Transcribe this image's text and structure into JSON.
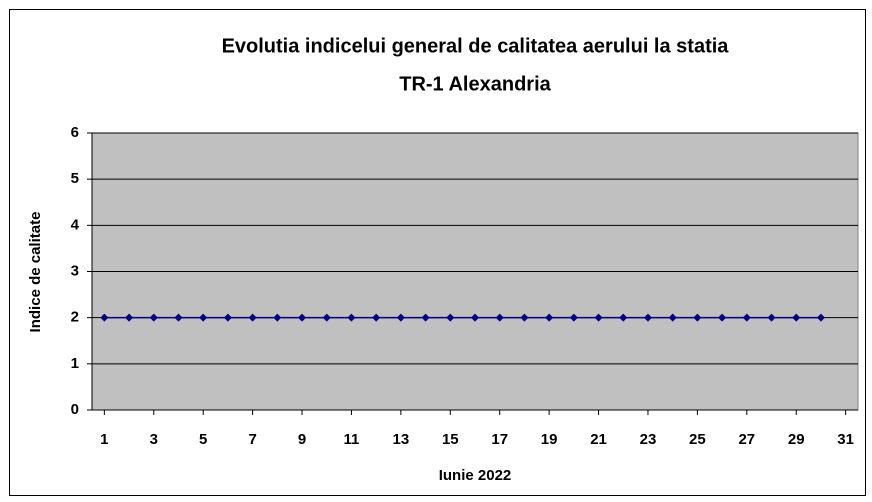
{
  "chart_data": {
    "type": "line",
    "title": [
      "Evolutia indicelui general de calitatea aerului la statia",
      "TR-1 Alexandria"
    ],
    "x_label": "Iunie 2022",
    "y_label": "Indice de calitate",
    "x": [
      1,
      2,
      3,
      4,
      5,
      6,
      7,
      8,
      9,
      10,
      11,
      12,
      13,
      14,
      15,
      16,
      17,
      18,
      19,
      20,
      21,
      22,
      23,
      24,
      25,
      26,
      27,
      28,
      29,
      30
    ],
    "values": [
      2,
      2,
      2,
      2,
      2,
      2,
      2,
      2,
      2,
      2,
      2,
      2,
      2,
      2,
      2,
      2,
      2,
      2,
      2,
      2,
      2,
      2,
      2,
      2,
      2,
      2,
      2,
      2,
      2,
      2
    ],
    "color": "#000080",
    "plot_background": "#c0c0c0",
    "xlim": [
      0.5,
      31.5
    ],
    "xticks": [
      1,
      3,
      5,
      7,
      9,
      11,
      13,
      15,
      17,
      19,
      21,
      23,
      25,
      27,
      29,
      31
    ],
    "ylim": [
      0,
      6
    ],
    "yticks": [
      0,
      1,
      2,
      3,
      4,
      5,
      6
    ],
    "grid": true
  }
}
